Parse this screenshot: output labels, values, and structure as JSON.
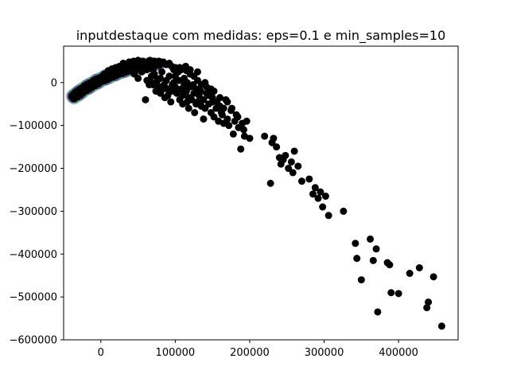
{
  "chart_data": {
    "type": "scatter",
    "title": "inputdestaque com medidas: eps=0.1 e min_samples=10",
    "xlabel": "",
    "ylabel": "",
    "xlim": [
      -50000,
      480000
    ],
    "ylim": [
      -600000,
      85000
    ],
    "xticks": [
      0,
      100000,
      200000,
      300000,
      400000
    ],
    "xtick_labels": [
      "0",
      "100000",
      "200000",
      "300000",
      "400000"
    ],
    "yticks": [
      0,
      -100000,
      -200000,
      -300000,
      -400000,
      -500000,
      -600000
    ],
    "ytick_labels": [
      "0",
      "−100000",
      "−200000",
      "−300000",
      "−400000",
      "−500000",
      "−600000"
    ],
    "grid": false,
    "legend": "none",
    "marker_color": "#000000",
    "cluster_colors": [
      "#3b0f70",
      "#31688e",
      "#35b779"
    ],
    "dense_cluster": [
      [
        -38000,
        -32000
      ],
      [
        -36000,
        -28000
      ],
      [
        -34000,
        -25000
      ],
      [
        -30000,
        -20000
      ],
      [
        -26000,
        -15000
      ],
      [
        -22000,
        -10000
      ],
      [
        -18000,
        -6000
      ],
      [
        -14000,
        -2000
      ],
      [
        -10000,
        2000
      ],
      [
        -6000,
        6000
      ],
      [
        -2000,
        9000
      ],
      [
        2000,
        12000
      ],
      [
        6000,
        16000
      ],
      [
        10000,
        19000
      ],
      [
        14000,
        22000
      ],
      [
        18000,
        25000
      ],
      [
        22000,
        28000
      ],
      [
        26000,
        30000
      ],
      [
        30000,
        33000
      ],
      [
        34000,
        35000
      ],
      [
        38000,
        37000
      ],
      [
        42000,
        38000
      ],
      [
        46000,
        40000
      ],
      [
        50000,
        41000
      ],
      [
        54000,
        42000
      ],
      [
        58000,
        43000
      ],
      [
        62000,
        44000
      ],
      [
        66000,
        44000
      ],
      [
        70000,
        44000
      ],
      [
        74000,
        43000
      ],
      [
        78000,
        42000
      ],
      [
        -36000,
        -36000
      ],
      [
        -32000,
        -32000
      ],
      [
        -28000,
        -27000
      ],
      [
        -24000,
        -22000
      ],
      [
        -20000,
        -17000
      ],
      [
        -16000,
        -13000
      ],
      [
        -12000,
        -9000
      ],
      [
        -8000,
        -5000
      ],
      [
        -4000,
        -1000
      ],
      [
        0,
        3000
      ],
      [
        4000,
        6000
      ],
      [
        8000,
        9000
      ],
      [
        12000,
        12000
      ],
      [
        16000,
        15000
      ],
      [
        20000,
        18000
      ],
      [
        24000,
        21000
      ],
      [
        28000,
        23000
      ],
      [
        32000,
        26000
      ],
      [
        36000,
        28000
      ],
      [
        40000,
        30000
      ],
      [
        44000,
        31000
      ],
      [
        48000,
        33000
      ],
      [
        52000,
        34000
      ],
      [
        56000,
        35000
      ],
      [
        60000,
        36000
      ]
    ],
    "noise_points": [
      [
        40000,
        30000
      ],
      [
        45000,
        20000
      ],
      [
        50000,
        10000
      ],
      [
        55000,
        25000
      ],
      [
        60000,
        35000
      ],
      [
        62000,
        5000
      ],
      [
        65000,
        -5000
      ],
      [
        68000,
        15000
      ],
      [
        70000,
        30000
      ],
      [
        72000,
        20000
      ],
      [
        75000,
        0
      ],
      [
        78000,
        -10000
      ],
      [
        80000,
        10000
      ],
      [
        82000,
        25000
      ],
      [
        85000,
        -5000
      ],
      [
        88000,
        5000
      ],
      [
        90000,
        -15000
      ],
      [
        92000,
        15000
      ],
      [
        95000,
        -20000
      ],
      [
        98000,
        0
      ],
      [
        100000,
        -10000
      ],
      [
        102000,
        -25000
      ],
      [
        105000,
        5000
      ],
      [
        108000,
        -15000
      ],
      [
        110000,
        -30000
      ],
      [
        112000,
        -5000
      ],
      [
        115000,
        -20000
      ],
      [
        118000,
        -35000
      ],
      [
        120000,
        -10000
      ],
      [
        122000,
        -40000
      ],
      [
        125000,
        -25000
      ],
      [
        128000,
        -15000
      ],
      [
        130000,
        -45000
      ],
      [
        132000,
        -30000
      ],
      [
        135000,
        -55000
      ],
      [
        138000,
        -40000
      ],
      [
        140000,
        -60000
      ],
      [
        142000,
        -25000
      ],
      [
        145000,
        -50000
      ],
      [
        148000,
        -70000
      ],
      [
        150000,
        -45000
      ],
      [
        152000,
        -80000
      ],
      [
        155000,
        -60000
      ],
      [
        158000,
        -90000
      ],
      [
        160000,
        -55000
      ],
      [
        163000,
        -75000
      ],
      [
        165000,
        -95000
      ],
      [
        168000,
        -40000
      ],
      [
        170000,
        -85000
      ],
      [
        172000,
        -100000
      ],
      [
        175000,
        -65000
      ],
      [
        178000,
        -120000
      ],
      [
        180000,
        -90000
      ],
      [
        182000,
        -75000
      ],
      [
        185000,
        -105000
      ],
      [
        188000,
        -155000
      ],
      [
        190000,
        -95000
      ],
      [
        193000,
        -125000
      ],
      [
        196000,
        -90000
      ],
      [
        200000,
        -130000
      ],
      [
        220000,
        -125000
      ],
      [
        230000,
        -140000
      ],
      [
        228000,
        -235000
      ],
      [
        232000,
        -130000
      ],
      [
        236000,
        -150000
      ],
      [
        240000,
        -175000
      ],
      [
        242000,
        -190000
      ],
      [
        245000,
        -180000
      ],
      [
        248000,
        -170000
      ],
      [
        252000,
        -200000
      ],
      [
        256000,
        -185000
      ],
      [
        258000,
        -210000
      ],
      [
        260000,
        -160000
      ],
      [
        265000,
        -195000
      ],
      [
        270000,
        -230000
      ],
      [
        280000,
        -225000
      ],
      [
        285000,
        -260000
      ],
      [
        288000,
        -245000
      ],
      [
        292000,
        -270000
      ],
      [
        295000,
        -255000
      ],
      [
        298000,
        -290000
      ],
      [
        302000,
        -265000
      ],
      [
        306000,
        -310000
      ],
      [
        326000,
        -300000
      ],
      [
        342000,
        -375000
      ],
      [
        344000,
        -410000
      ],
      [
        350000,
        -460000
      ],
      [
        362000,
        -365000
      ],
      [
        366000,
        -415000
      ],
      [
        370000,
        -388000
      ],
      [
        372000,
        -535000
      ],
      [
        385000,
        -420000
      ],
      [
        388000,
        -425000
      ],
      [
        390000,
        -490000
      ],
      [
        400000,
        -492000
      ],
      [
        415000,
        -445000
      ],
      [
        428000,
        -432000
      ],
      [
        438000,
        -525000
      ],
      [
        440000,
        -512000
      ],
      [
        447000,
        -453000
      ],
      [
        458000,
        -568000
      ],
      [
        5000,
        20000
      ],
      [
        10000,
        28000
      ],
      [
        15000,
        32000
      ],
      [
        20000,
        35000
      ],
      [
        25000,
        38000
      ],
      [
        30000,
        40000
      ],
      [
        35000,
        42000
      ],
      [
        42000,
        45000
      ],
      [
        48000,
        46000
      ],
      [
        52000,
        48000
      ],
      [
        58000,
        46000
      ],
      [
        64000,
        49000
      ],
      [
        70000,
        47000
      ],
      [
        76000,
        46000
      ],
      [
        82000,
        44000
      ],
      [
        88000,
        42000
      ],
      [
        95000,
        38000
      ],
      [
        100000,
        35000
      ],
      [
        108000,
        30000
      ],
      [
        115000,
        28000
      ],
      [
        120000,
        20000
      ],
      [
        125000,
        15000
      ],
      [
        130000,
        5000
      ],
      [
        135000,
        -5000
      ],
      [
        60000,
        -40000
      ],
      [
        90000,
        -30000
      ],
      [
        110000,
        -50000
      ],
      [
        118000,
        -60000
      ],
      [
        126000,
        -70000
      ],
      [
        138000,
        -85000
      ],
      [
        145000,
        -30000
      ],
      [
        152000,
        -20000
      ],
      [
        160000,
        -35000
      ],
      [
        165000,
        -60000
      ],
      [
        55000,
        40000
      ],
      [
        62000,
        30000
      ],
      [
        68000,
        0
      ],
      [
        74000,
        -20000
      ],
      [
        80000,
        -25000
      ],
      [
        86000,
        -35000
      ],
      [
        94000,
        -45000
      ],
      [
        100000,
        15000
      ],
      [
        104000,
        25000
      ],
      [
        112000,
        10000
      ],
      [
        116000,
        0
      ],
      [
        124000,
        -5000
      ],
      [
        128000,
        -50000
      ],
      [
        134000,
        -20000
      ],
      [
        142000,
        -10000
      ],
      [
        150000,
        -35000
      ],
      [
        156000,
        -45000
      ],
      [
        162000,
        -70000
      ],
      [
        170000,
        -45000
      ],
      [
        176000,
        -60000
      ],
      [
        184000,
        -80000
      ],
      [
        192000,
        -110000
      ],
      [
        30000,
        45000
      ],
      [
        38000,
        48000
      ],
      [
        44000,
        50000
      ],
      [
        50000,
        52000
      ],
      [
        56000,
        50000
      ],
      [
        66000,
        52000
      ],
      [
        72000,
        50000
      ],
      [
        78000,
        50000
      ],
      [
        84000,
        48000
      ],
      [
        92000,
        45000
      ],
      [
        98000,
        30000
      ],
      [
        106000,
        35000
      ],
      [
        114000,
        38000
      ],
      [
        120000,
        30000
      ],
      [
        130000,
        25000
      ],
      [
        140000,
        0
      ],
      [
        148000,
        -15000
      ],
      [
        70000,
        -5000
      ],
      [
        76000,
        8000
      ],
      [
        84000,
        -15000
      ],
      [
        96000,
        -5000
      ],
      [
        106000,
        -40000
      ],
      [
        116000,
        -45000
      ]
    ]
  }
}
